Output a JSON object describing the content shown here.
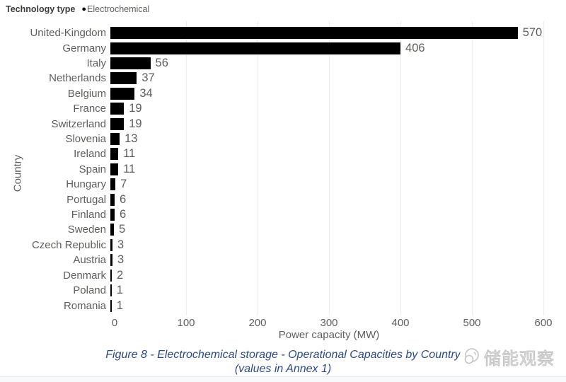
{
  "legend": {
    "title": "Technology type",
    "marker": "●",
    "marker_color": "#000000",
    "item": "Electrochemical"
  },
  "chart_data": {
    "type": "bar",
    "orientation": "horizontal",
    "categories": [
      "United-Kingdom",
      "Germany",
      "Italy",
      "Netherlands",
      "Belgium",
      "France",
      "Switzerland",
      "Slovenia",
      "Ireland",
      "Spain",
      "Hungary",
      "Portugal",
      "Finland",
      "Sweden",
      "Czech Republic",
      "Austria",
      "Denmark",
      "Poland",
      "Romania"
    ],
    "values": [
      570,
      406,
      56,
      37,
      34,
      19,
      19,
      13,
      11,
      11,
      7,
      6,
      6,
      5,
      3,
      3,
      2,
      1,
      1
    ],
    "xlabel": "Power capacity (MW)",
    "ylabel": "Country",
    "xlim": [
      0,
      600
    ],
    "xticks": [
      0,
      100,
      200,
      300,
      400,
      500,
      600
    ],
    "bar_color": "#000000",
    "text_color": "#605e5c",
    "gridline_color": "#ececec",
    "grid": "vertical",
    "data_labels": true,
    "legend_position": "top-left"
  },
  "caption": {
    "line1": "Figure 8 - Electrochemical storage - Operational Capacities by Country",
    "line2": "(values in Annex 1)",
    "color": "#2b4a8a"
  },
  "watermark": {
    "text": "储能观察"
  }
}
